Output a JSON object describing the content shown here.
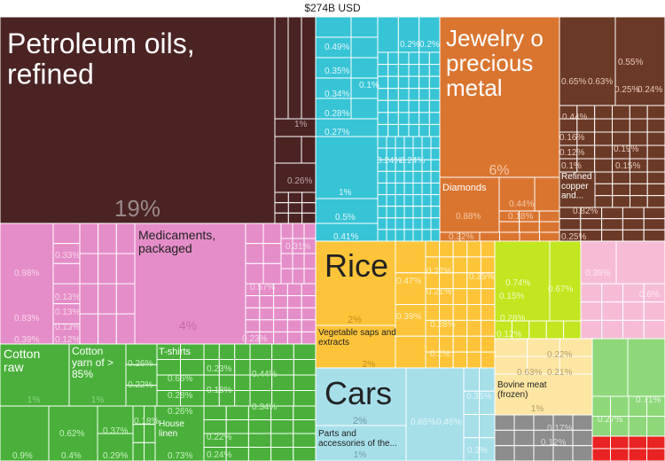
{
  "chart_data": {
    "type": "treemap",
    "title": "$274B USD",
    "labeled_tiles": [
      {
        "name": "Petroleum oils, refined",
        "value": "19%"
      },
      {
        "name": "Jewelry of precious metal",
        "value": "6%"
      },
      {
        "name": "Diamonds",
        "value": ""
      },
      {
        "name": "Refined copper and...",
        "value": ""
      },
      {
        "name": "Medicaments, packaged",
        "value": "4%"
      },
      {
        "name": "Rice",
        "value": "2%"
      },
      {
        "name": "Vegetable saps and extracts",
        "value": "2%"
      },
      {
        "name": "Cars",
        "value": "2%"
      },
      {
        "name": "Parts and accessories of the...",
        "value": "1%"
      },
      {
        "name": "Cotton raw",
        "value": "1%"
      },
      {
        "name": "Cotton yarn of > 85%",
        "value": "1%"
      },
      {
        "name": "T-shirts",
        "value": ""
      },
      {
        "name": "House linen",
        "value": ""
      },
      {
        "name": "Bovine meat (frozen)",
        "value": "1%"
      }
    ],
    "percent_labels": [
      "1%",
      "0.26%",
      "0.49%",
      "0.35%",
      "0.34%",
      "0.28%",
      "0.27%",
      "1%",
      "0.5%",
      "0.41%",
      "0.2%",
      "0.2%",
      "0.1%",
      "0.24%",
      "0.24%",
      "0.32%",
      "0.88%",
      "0.44%",
      "0.18%",
      "0.65%",
      "0.63%",
      "0.55%",
      "0.25%",
      "0.24%",
      "0.44%",
      "0.16%",
      "0.12%",
      "0.19%",
      "0.1%",
      "0.15%",
      "0.82%",
      "0.25%",
      "0.98%",
      "0.83%",
      "0.39%",
      "0.33%",
      "0.13%",
      "0.13%",
      "0.13%",
      "0.12%",
      "0.31%",
      "0.57%",
      "0.23%",
      "0.47%",
      "0.27%",
      "0.35%",
      "0.21%",
      "0.39%",
      "0.28%",
      "0.2%",
      "0.74%",
      "0.67%",
      "0.15%",
      "0.28%",
      "0.12%",
      "0.39%",
      "0.6%",
      "0.65%",
      "0.46%",
      "0.36%",
      "0.3%",
      "0.22%",
      "0.63%",
      "0.21%",
      "0.17%",
      "0.12%",
      "0.27%",
      "0.71%",
      "0.26%",
      "0.22%",
      "0.66%",
      "0.28%",
      "0.26%",
      "0.23%",
      "0.18%",
      "0.44%",
      "0.34%",
      "0.18%",
      "0.22%",
      "0.24%",
      "0.62%",
      "0.37%",
      "0.9%",
      "0.4%",
      "0.29%",
      "0.73%"
    ],
    "sector_colors": {
      "minerals": "#4b2323",
      "textiles_machinery": "#37c4d6",
      "precious_metals": "#da7530",
      "metals": "#6b3a26",
      "chemicals": "#e58dc8",
      "vegetable_products": "#fec439",
      "foodstuffs": "#c2e61f",
      "plastics": "#f6bcd6",
      "transportation": "#a7dfe9",
      "animal_products": "#fde5a2",
      "electronics": "#8d8d8d",
      "misc": "#8ed87a",
      "textiles": "#4ab03b",
      "instruments": "#e92321"
    }
  }
}
